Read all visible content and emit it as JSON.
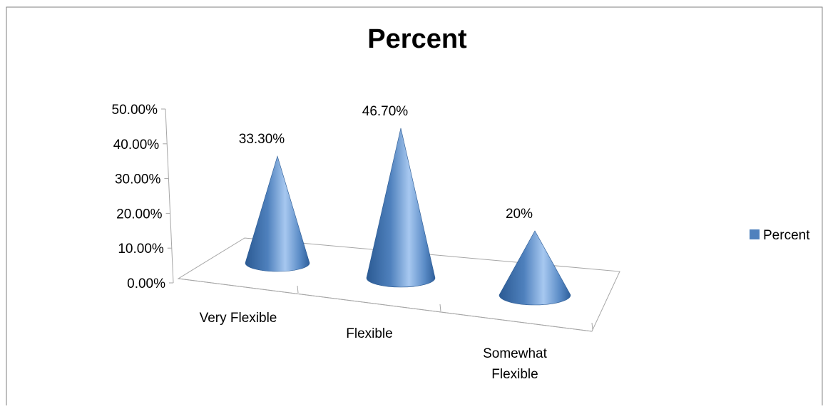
{
  "chart_data": {
    "type": "bar",
    "bar_shape": "cone",
    "style": "3d",
    "title": "Percent",
    "categories": [
      "Very Flexible",
      "Flexible",
      "Somewhat Flexible"
    ],
    "category_lines": [
      [
        "Very Flexible"
      ],
      [
        "Flexible"
      ],
      [
        "Somewhat",
        "Flexible"
      ]
    ],
    "series": [
      {
        "name": "Percent",
        "values": [
          33.3,
          46.7,
          20
        ],
        "labels": [
          "33.30%",
          "46.70%",
          "20%"
        ],
        "color": "#4f81bd"
      }
    ],
    "ylim": [
      0,
      50
    ],
    "y_ticks": [
      "0.00%",
      "10.00%",
      "20.00%",
      "30.00%",
      "40.00%",
      "50.00%"
    ],
    "y_tick_values": [
      0,
      10,
      20,
      30,
      40,
      50
    ],
    "grid": false,
    "legend": "right",
    "colors": {
      "cone_dark": "#2b5a93",
      "cone_mid": "#4f81bd",
      "cone_light": "#a7c8f0",
      "axis": "#7f7f7f"
    }
  }
}
